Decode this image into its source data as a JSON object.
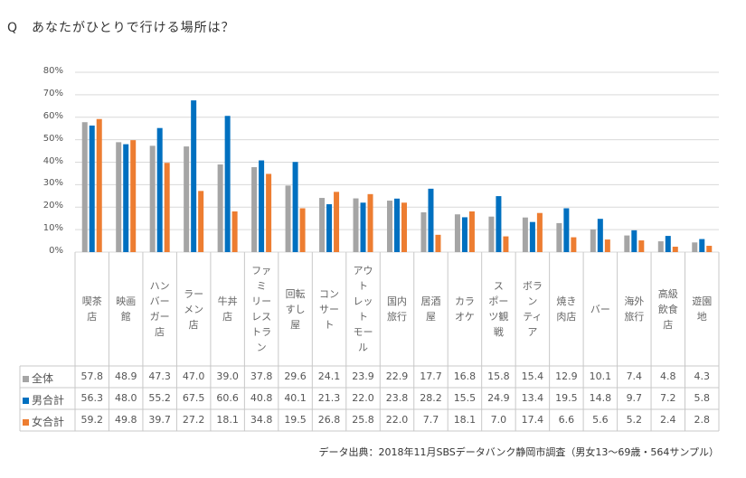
{
  "title": "Q　あなたがひとりで行ける場所は？",
  "footer": "データ出典：2018年11月SBSデータバンク静岡市調査（男女13～69歳・564サンプル）",
  "chart_data": {
    "type": "bar",
    "title": "Q　あなたがひとりで行ける場所は？",
    "ylabel": "",
    "xlabel": "",
    "ylim": [
      0,
      80
    ],
    "yticks": [
      "0%",
      "10%",
      "20%",
      "30%",
      "40%",
      "50%",
      "60%",
      "70%",
      "80%"
    ],
    "grid": true,
    "legend": "table-left",
    "categories": [
      "喫茶\n店",
      "映画\n館",
      "ハン\nバー\nガー\n店",
      "ラー\nメン\n店",
      "牛丼\n店",
      "ファ\nミ\nリー\nレス\nトラ\nン",
      "回転\nすし\n屋",
      "コン\nサー\nト",
      "アウ\nト\nレッ\nト\nモー\nル",
      "国内\n旅行",
      "居酒\n屋",
      "カラ\nオケ",
      "ス\nポー\nツ観\n戦",
      "ボラ\nン\nティ\nア",
      "焼き\n肉店",
      "バー",
      "海外\n旅行",
      "高級\n飲食\n店",
      "遊園\n地"
    ],
    "series": [
      {
        "name": "全体",
        "color": "#a5a5a5",
        "values": [
          57.8,
          48.9,
          47.3,
          47.0,
          39.0,
          37.8,
          29.6,
          24.1,
          23.9,
          22.9,
          17.7,
          16.8,
          15.8,
          15.4,
          12.9,
          10.1,
          7.4,
          4.8,
          4.3
        ]
      },
      {
        "name": "男合計",
        "color": "#0070c0",
        "values": [
          56.3,
          48.0,
          55.2,
          67.5,
          60.6,
          40.8,
          40.1,
          21.3,
          22.0,
          23.8,
          28.2,
          15.5,
          24.9,
          13.4,
          19.5,
          14.8,
          9.7,
          7.2,
          5.8
        ]
      },
      {
        "name": "女合計",
        "color": "#ed7d31",
        "values": [
          59.2,
          49.8,
          39.7,
          27.2,
          18.1,
          34.8,
          19.5,
          26.8,
          25.8,
          22.0,
          7.7,
          18.1,
          7.0,
          17.4,
          6.6,
          5.6,
          5.2,
          2.4,
          2.8
        ]
      }
    ]
  }
}
